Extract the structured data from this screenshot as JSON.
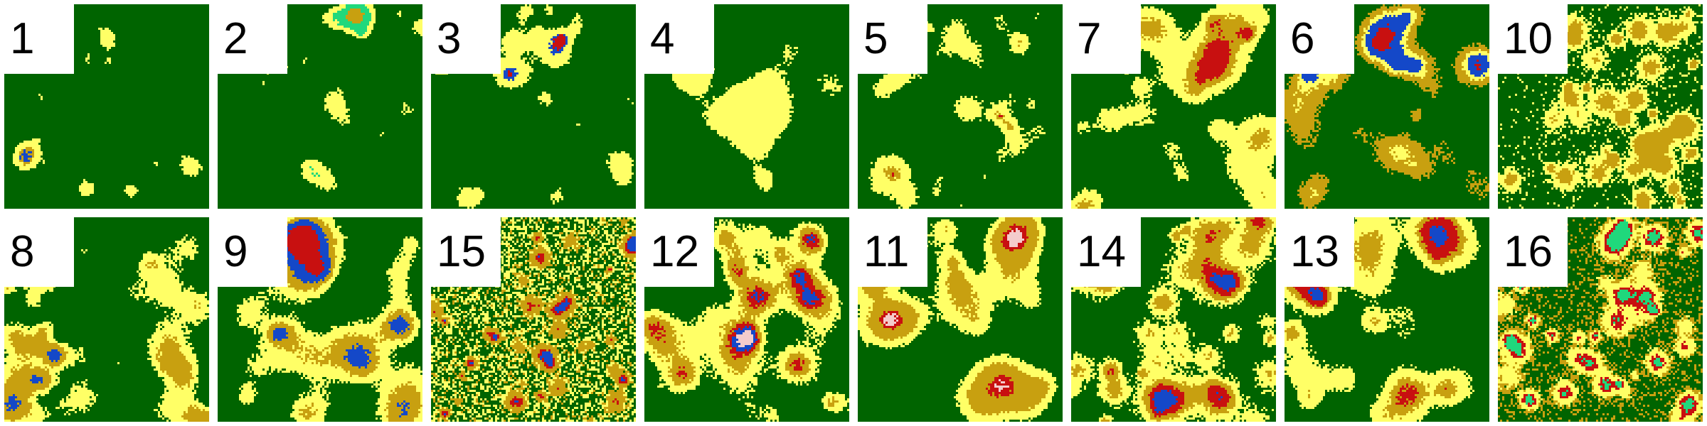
{
  "panels": [
    {
      "label": "1",
      "mix": {
        "forest": 0.96,
        "yellow": 0.035,
        "olive": 0.003,
        "water": 0.002
      },
      "blob": 4,
      "seed": 11
    },
    {
      "label": "2",
      "mix": {
        "forest": 0.93,
        "yellow": 0.05,
        "olive": 0.005,
        "teal": 0.015
      },
      "blob": 5,
      "seed": 23
    },
    {
      "label": "3",
      "mix": {
        "forest": 0.87,
        "yellow": 0.12,
        "red": 0.004,
        "water": 0.006
      },
      "blob": 4,
      "seed": 37
    },
    {
      "label": "4",
      "mix": {
        "forest": 0.8,
        "yellow": 0.2
      },
      "blob": 9,
      "seed": 41
    },
    {
      "label": "5",
      "mix": {
        "forest": 0.82,
        "yellow": 0.16,
        "olive": 0.01,
        "red": 0.006,
        "water": 0.004
      },
      "blob": 5,
      "seed": 53
    },
    {
      "label": "7",
      "mix": {
        "forest": 0.6,
        "yellow": 0.3,
        "olive": 0.07,
        "red": 0.03
      },
      "blob": 7,
      "seed": 67
    },
    {
      "label": "6",
      "mix": {
        "forest": 0.68,
        "olive": 0.2,
        "yellow": 0.06,
        "water": 0.05,
        "red": 0.01
      },
      "blob": 8,
      "seed": 71
    },
    {
      "label": "10",
      "mix": {
        "forest": 0.55,
        "yellow": 0.3,
        "olive": 0.15
      },
      "blob": 3,
      "seed": 83
    },
    {
      "label": "8",
      "mix": {
        "forest": 0.6,
        "yellow": 0.24,
        "olive": 0.13,
        "water": 0.03
      },
      "blob": 6,
      "seed": 97
    },
    {
      "label": "9",
      "mix": {
        "forest": 0.5,
        "yellow": 0.3,
        "olive": 0.12,
        "water": 0.05,
        "red": 0.03
      },
      "blob": 8,
      "seed": 101
    },
    {
      "label": "15",
      "mix": {
        "forest": 0.45,
        "yellow": 0.3,
        "olive": 0.22,
        "red": 0.02,
        "water": 0.01
      },
      "blob": 2,
      "seed": 113
    },
    {
      "label": "12",
      "mix": {
        "forest": 0.52,
        "yellow": 0.28,
        "olive": 0.14,
        "red": 0.04,
        "water": 0.015,
        "pink": 0.005
      },
      "blob": 8,
      "seed": 127
    },
    {
      "label": "11",
      "mix": {
        "forest": 0.5,
        "yellow": 0.25,
        "olive": 0.21,
        "red": 0.03,
        "pink": 0.01
      },
      "blob": 9,
      "seed": 131
    },
    {
      "label": "14",
      "mix": {
        "forest": 0.48,
        "yellow": 0.3,
        "olive": 0.15,
        "red": 0.05,
        "water": 0.02
      },
      "blob": 4,
      "seed": 139
    },
    {
      "label": "13",
      "mix": {
        "forest": 0.52,
        "yellow": 0.3,
        "olive": 0.1,
        "red": 0.07,
        "water": 0.01
      },
      "blob": 8,
      "seed": 149
    },
    {
      "label": "16",
      "mix": {
        "forest": 0.46,
        "yellow": 0.22,
        "olive": 0.22,
        "red": 0.06,
        "teal": 0.04
      },
      "blob": 3,
      "seed": 157
    }
  ],
  "palette": {
    "forest": "#006400",
    "yellow": "#ffff66",
    "olive": "#c8a010",
    "red": "#c81010",
    "water": "#1448c8",
    "teal": "#20d87c",
    "pink": "#f4cccc"
  }
}
